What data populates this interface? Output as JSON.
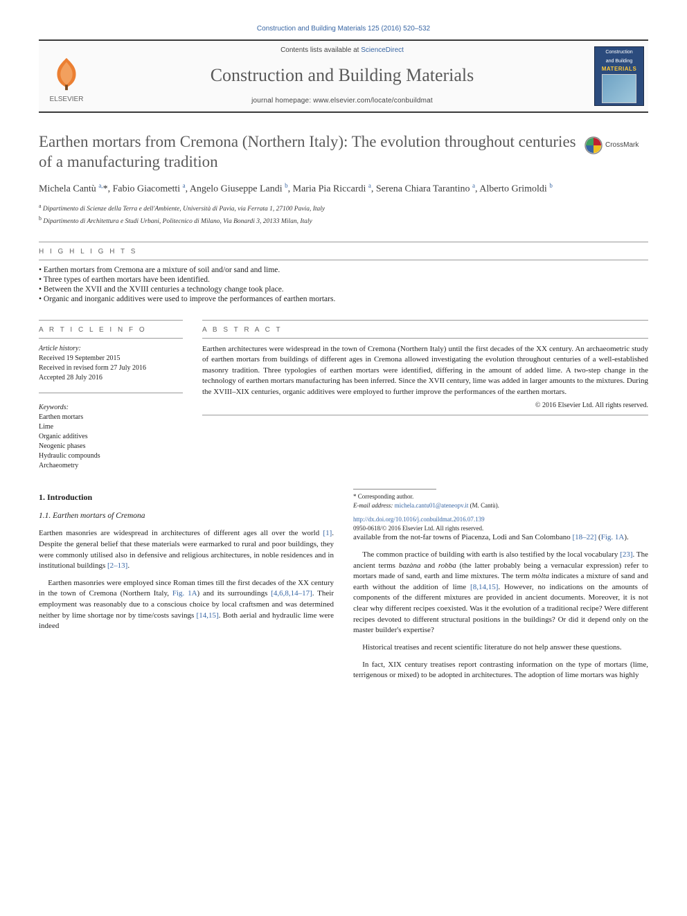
{
  "citation": "Construction and Building Materials 125 (2016) 520–532",
  "header": {
    "contents_prefix": "Contents lists available at ",
    "contents_link": "ScienceDirect",
    "journal_name": "Construction and Building Materials",
    "homepage_label": "journal homepage: ",
    "homepage_url": "www.elsevier.com/locate/conbuildmat",
    "publisher": "ELSEVIER",
    "cover_line1": "Construction",
    "cover_line2": "and Building",
    "cover_line3": "MATERIALS"
  },
  "crossmark": "CrossMark",
  "title": "Earthen mortars from Cremona (Northern Italy): The evolution throughout centuries of a manufacturing tradition",
  "authors_html": "Michela Cantù <sup>a,</sup><span class='cor'>*</span>, Fabio Giacometti <sup>a</sup>, Angelo Giuseppe Landi <sup>b</sup>, Maria Pia Riccardi <sup>a</sup>, Serena Chiara Tarantino <sup>a</sup>, Alberto Grimoldi <sup>b</sup>",
  "affiliations": [
    {
      "sup": "a",
      "text": "Dipartimento di Scienze della Terra e dell'Ambiente, Università di Pavia, via Ferrata 1, 27100 Pavia, Italy"
    },
    {
      "sup": "b",
      "text": "Dipartimento di Architettura e Studi Urbani, Politecnico di Milano, Via Bonardi 3, 20133 Milan, Italy"
    }
  ],
  "hl_head": "H I G H L I G H T S",
  "highlights": [
    "Earthen mortars from Cremona are a mixture of soil and/or sand and lime.",
    "Three types of earthen mortars have been identified.",
    "Between the XVII and the XVIII centuries a technology change took place.",
    "Organic and inorganic additives were used to improve the performances of earthen mortars."
  ],
  "ai_head": "A R T I C L E   I N F O",
  "abs_head": "A B S T R A C T",
  "article_info": {
    "history_head": "Article history:",
    "received": "Received 19 September 2015",
    "revised": "Received in revised form 27 July 2016",
    "accepted": "Accepted 28 July 2016",
    "keywords_head": "Keywords:",
    "keywords": [
      "Earthen mortars",
      "Lime",
      "Organic additives",
      "Neogenic phases",
      "Hydraulic compounds",
      "Archaeometry"
    ]
  },
  "abstract": "Earthen architectures were widespread in the town of Cremona (Northern Italy) until the first decades of the XX century. An archaeometric study of earthen mortars from buildings of different ages in Cremona allowed investigating the evolution throughout centuries of a well-established masonry tradition. Three typologies of earthen mortars were identified, differing in the amount of added lime. A two-step change in the technology of earthen mortars manufacturing has been inferred. Since the XVII century, lime was added in larger amounts to the mixtures. During the XVIII–XIX centuries, organic additives were employed to further improve the performances of the earthen mortars.",
  "copyright": "© 2016 Elsevier Ltd. All rights reserved.",
  "section1": "1. Introduction",
  "section11": "1.1. Earthen mortars of Cremona",
  "paras": {
    "p1": "Earthen masonries are widespread in architectures of different ages all over the world [1]. Despite the general belief that these materials were earmarked to rural and poor buildings, they were commonly utilised also in defensive and religious architectures, in noble residences and in institutional buildings [2–13].",
    "p2": "Earthen masonries were employed since Roman times till the first decades of the XX century in the town of Cremona (Northern Italy, Fig. 1A) and its surroundings [4,6,8,14–17]. Their employment was reasonably due to a conscious choice by local craftsmen and was determined neither by lime shortage nor by time/costs savings [14,15]. Both aerial and hydraulic lime were indeed",
    "p3": "available from the not-far towns of Piacenza, Lodi and San Colombano [18–22] (Fig. 1A).",
    "p4": "The common practice of building with earth is also testified by the local vocabulary [23]. The ancient terms bazàna and robba (the latter probably being a vernacular expression) refer to mortars made of sand, earth and lime mixtures. The term mòlta indicates a mixture of sand and earth without the addition of lime [8,14,15]. However, no indications on the amounts of components of the different mixtures are provided in ancient documents. Moreover, it is not clear why different recipes coexisted. Was it the evolution of a traditional recipe? Were different recipes devoted to different structural positions in the buildings? Or did it depend only on the master builder's expertise?",
    "p5": "Historical treatises and recent scientific literature do not help answer these questions.",
    "p6": "In fact, XIX century treatises report contrasting information on the type of mortars (lime, terrigenous or mixed) to be adopted in architectures. The adoption of lime mortars was highly"
  },
  "footnote": {
    "corresp": "* Corresponding author.",
    "email_label": "E-mail address: ",
    "email": "michela.cantu01@ateneopv.it",
    "email_paren": " (M. Cantù)."
  },
  "doi": {
    "url": "http://dx.doi.org/10.1016/j.conbuildmat.2016.07.139",
    "issn_line": "0950-0618/© 2016 Elsevier Ltd. All rights reserved."
  },
  "colors": {
    "link": "#3765a3",
    "heading_gray": "#5a5a5a",
    "rule": "#3a3a3a",
    "cover_bg": "#2b4b7d",
    "cover_accent": "#ffc938"
  }
}
